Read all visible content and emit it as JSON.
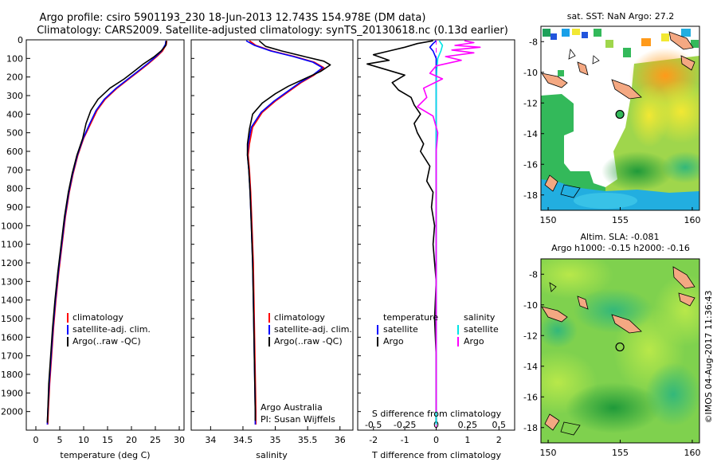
{
  "title": {
    "line1": "Argo profile: csiro 5901193_230 18-Jun-2013 12.743S 154.978E (DM data)",
    "line2": "Climatology: CARS2009. Satellite-adjusted climatology: synTS_20130618.nc (0.13d earlier)"
  },
  "colors": {
    "climatology": "#ff0000",
    "satellite": "#0000ff",
    "argo": "#000000",
    "cyan": "#00e5e5",
    "magenta": "#ff00ff"
  },
  "chart_data": [
    {
      "type": "line",
      "name": "temperature-profile",
      "xlabel": "temperature (deg C)",
      "ylabel": "",
      "xlim": [
        -2,
        31
      ],
      "ylim": [
        2100,
        0
      ],
      "xticks": [
        0,
        5,
        10,
        15,
        20,
        25,
        30
      ],
      "yticks": [
        0,
        100,
        200,
        300,
        400,
        500,
        600,
        700,
        800,
        900,
        1000,
        1100,
        1200,
        1300,
        1400,
        1500,
        1600,
        1700,
        1800,
        1900,
        2000
      ],
      "legend": [
        "climatology",
        "satellite-adj. clim.",
        "Argo(..raw -QC)"
      ],
      "series": [
        {
          "name": "climatology",
          "color": "#ff0000",
          "points": [
            [
              27.4,
              5
            ],
            [
              27.3,
              25
            ],
            [
              26.5,
              60
            ],
            [
              25.3,
              90
            ],
            [
              23.5,
              130
            ],
            [
              21.5,
              170
            ],
            [
              19.5,
              210
            ],
            [
              17,
              260
            ],
            [
              14.5,
              320
            ],
            [
              12.8,
              380
            ],
            [
              11.5,
              450
            ],
            [
              10,
              530
            ],
            [
              8.8,
              620
            ],
            [
              7.8,
              720
            ],
            [
              7,
              820
            ],
            [
              6.2,
              950
            ],
            [
              5.5,
              1100
            ],
            [
              4.8,
              1250
            ],
            [
              4.2,
              1400
            ],
            [
              3.7,
              1550
            ],
            [
              3.3,
              1700
            ],
            [
              2.9,
              1850
            ],
            [
              2.6,
              2000
            ],
            [
              2.5,
              2070
            ]
          ]
        },
        {
          "name": "satellite",
          "color": "#0000ff",
          "points": [
            [
              27.2,
              5
            ],
            [
              27.1,
              25
            ],
            [
              26.3,
              60
            ],
            [
              25.1,
              90
            ],
            [
              23.3,
              130
            ],
            [
              21.3,
              170
            ],
            [
              19.3,
              210
            ],
            [
              16.8,
              260
            ],
            [
              14.3,
              320
            ],
            [
              12.6,
              380
            ],
            [
              11.3,
              450
            ],
            [
              9.9,
              530
            ],
            [
              8.7,
              620
            ],
            [
              7.7,
              720
            ],
            [
              6.9,
              820
            ],
            [
              6.1,
              950
            ],
            [
              5.4,
              1100
            ],
            [
              4.7,
              1250
            ],
            [
              4.1,
              1400
            ],
            [
              3.6,
              1550
            ],
            [
              3.2,
              1700
            ],
            [
              2.8,
              1850
            ],
            [
              2.5,
              2000
            ],
            [
              2.4,
              2070
            ]
          ]
        },
        {
          "name": "argo",
          "color": "#000000",
          "points": [
            [
              27.3,
              5
            ],
            [
              27.2,
              30
            ],
            [
              26.2,
              60
            ],
            [
              24.8,
              90
            ],
            [
              22.5,
              130
            ],
            [
              20.5,
              170
            ],
            [
              18.5,
              210
            ],
            [
              15.5,
              260
            ],
            [
              13,
              320
            ],
            [
              11.5,
              380
            ],
            [
              10.5,
              450
            ],
            [
              9.8,
              530
            ],
            [
              8.6,
              620
            ],
            [
              7.6,
              720
            ],
            [
              6.8,
              820
            ],
            [
              6,
              950
            ],
            [
              5.3,
              1100
            ],
            [
              4.6,
              1250
            ],
            [
              4,
              1400
            ],
            [
              3.5,
              1550
            ],
            [
              3.1,
              1700
            ],
            [
              2.7,
              1850
            ],
            [
              2.5,
              2000
            ],
            [
              2.4,
              2060
            ]
          ]
        }
      ]
    },
    {
      "type": "line",
      "name": "salinity-profile",
      "xlabel": "salinity",
      "ylabel": "",
      "xlim": [
        33.7,
        36.2
      ],
      "ylim": [
        2100,
        0
      ],
      "xticks": [
        34,
        34.5,
        35,
        35.5,
        36
      ],
      "yticks": [],
      "legend": [
        "climatology",
        "satellite-adj. clim.",
        "Argo(..raw -QC)"
      ],
      "annotation": {
        "line1": "Argo Australia",
        "line2": "PI: Susan Wijffels"
      },
      "series": [
        {
          "name": "climatology",
          "color": "#ff0000",
          "points": [
            [
              34.6,
              5
            ],
            [
              34.7,
              30
            ],
            [
              34.95,
              60
            ],
            [
              35.3,
              90
            ],
            [
              35.6,
              120
            ],
            [
              35.75,
              150
            ],
            [
              35.6,
              190
            ],
            [
              35.4,
              230
            ],
            [
              35.2,
              280
            ],
            [
              35,
              330
            ],
            [
              34.8,
              390
            ],
            [
              34.65,
              470
            ],
            [
              34.6,
              560
            ],
            [
              34.58,
              620
            ],
            [
              34.6,
              700
            ],
            [
              34.62,
              820
            ],
            [
              34.64,
              1000
            ],
            [
              34.66,
              1200
            ],
            [
              34.67,
              1400
            ],
            [
              34.68,
              1600
            ],
            [
              34.69,
              1800
            ],
            [
              34.7,
              2000
            ],
            [
              34.7,
              2070
            ]
          ]
        },
        {
          "name": "satellite",
          "color": "#0000ff",
          "points": [
            [
              34.55,
              5
            ],
            [
              34.68,
              30
            ],
            [
              34.93,
              60
            ],
            [
              35.28,
              90
            ],
            [
              35.58,
              120
            ],
            [
              35.73,
              150
            ],
            [
              35.58,
              190
            ],
            [
              35.38,
              230
            ],
            [
              35.18,
              280
            ],
            [
              34.98,
              330
            ],
            [
              34.78,
              390
            ],
            [
              34.63,
              470
            ],
            [
              34.58,
              560
            ],
            [
              34.57,
              620
            ],
            [
              34.59,
              700
            ],
            [
              34.61,
              820
            ],
            [
              34.63,
              1000
            ],
            [
              34.65,
              1200
            ],
            [
              34.66,
              1400
            ],
            [
              34.67,
              1600
            ],
            [
              34.68,
              1800
            ],
            [
              34.69,
              2000
            ],
            [
              34.69,
              2070
            ]
          ]
        },
        {
          "name": "argo",
          "color": "#000000",
          "points": [
            [
              34.75,
              5
            ],
            [
              34.85,
              35
            ],
            [
              35.1,
              60
            ],
            [
              35.45,
              90
            ],
            [
              35.75,
              115
            ],
            [
              35.85,
              135
            ],
            [
              35.7,
              170
            ],
            [
              35.45,
              210
            ],
            [
              35.2,
              250
            ],
            [
              35,
              290
            ],
            [
              34.8,
              340
            ],
            [
              34.65,
              400
            ],
            [
              34.6,
              480
            ],
            [
              34.57,
              560
            ],
            [
              34.57,
              620
            ],
            [
              34.59,
              700
            ],
            [
              34.61,
              820
            ],
            [
              34.63,
              1000
            ],
            [
              34.65,
              1200
            ],
            [
              34.66,
              1400
            ],
            [
              34.67,
              1600
            ],
            [
              34.68,
              1800
            ],
            [
              34.69,
              2000
            ],
            [
              34.69,
              2050
            ]
          ]
        }
      ]
    },
    {
      "type": "line",
      "name": "difference-profile",
      "xlabel": "T difference from climatology",
      "xlabel_top": "S difference from climatology",
      "xlim": [
        -2.5,
        2.5
      ],
      "ylim": [
        2100,
        0
      ],
      "xticks_T": [
        -2,
        -1,
        0,
        1,
        2
      ],
      "xticks_S": [
        "-0.5",
        "-0.25",
        "0",
        "0.25",
        "0.5"
      ],
      "xticks_S_values": [
        -0.5,
        -0.25,
        0,
        0.25,
        0.5
      ],
      "legend_left": {
        "title": "temperature",
        "items": [
          "satellite",
          "Argo"
        ]
      },
      "legend_right": {
        "title": "salinity",
        "items": [
          "satellite",
          "Argo"
        ]
      },
      "series": [
        {
          "name": "T satellite",
          "color": "#0000ff",
          "points": [
            [
              0,
              5
            ],
            [
              -0.1,
              20
            ],
            [
              -0.2,
              40
            ],
            [
              -0.1,
              60
            ],
            [
              0,
              100
            ],
            [
              0,
              200
            ],
            [
              0,
              400
            ],
            [
              0,
              700
            ],
            [
              0,
              1000
            ],
            [
              0,
              1500
            ],
            [
              0,
              2070
            ]
          ]
        },
        {
          "name": "T argo",
          "color": "#000000",
          "points": [
            [
              -0.1,
              5
            ],
            [
              -0.6,
              20
            ],
            [
              -1,
              40
            ],
            [
              -1.5,
              60
            ],
            [
              -2,
              80
            ],
            [
              -1.5,
              110
            ],
            [
              -2.2,
              130
            ],
            [
              -1.6,
              160
            ],
            [
              -1,
              190
            ],
            [
              -1.4,
              230
            ],
            [
              -1.2,
              270
            ],
            [
              -0.8,
              310
            ],
            [
              -0.7,
              350
            ],
            [
              -0.5,
              400
            ],
            [
              -0.7,
              450
            ],
            [
              -0.6,
              500
            ],
            [
              -0.4,
              560
            ],
            [
              -0.5,
              600
            ],
            [
              -0.2,
              680
            ],
            [
              -0.3,
              760
            ],
            [
              -0.1,
              820
            ],
            [
              -0.15,
              900
            ],
            [
              -0.05,
              1000
            ],
            [
              -0.1,
              1100
            ],
            [
              0,
              1300
            ],
            [
              -0.05,
              1500
            ],
            [
              0,
              1700
            ],
            [
              0,
              1900
            ],
            [
              0,
              2060
            ]
          ]
        },
        {
          "name": "S satellite",
          "color": "#00e5e5",
          "points": [
            [
              0.1,
              5
            ],
            [
              0.2,
              30
            ],
            [
              0.15,
              60
            ],
            [
              0.05,
              100
            ],
            [
              0.02,
              160
            ],
            [
              0,
              250
            ],
            [
              0,
              400
            ],
            [
              0,
              700
            ],
            [
              0,
              1100
            ],
            [
              0,
              1500
            ],
            [
              0,
              2070
            ]
          ]
        },
        {
          "name": "S argo",
          "color": "#ff00ff",
          "points": [
            [
              0.9,
              5
            ],
            [
              1.2,
              15
            ],
            [
              0.6,
              30
            ],
            [
              1.4,
              40
            ],
            [
              0.5,
              55
            ],
            [
              1.2,
              70
            ],
            [
              0.3,
              90
            ],
            [
              0.8,
              110
            ],
            [
              0,
              140
            ],
            [
              -0.2,
              180
            ],
            [
              0.2,
              210
            ],
            [
              -0.4,
              260
            ],
            [
              -0.3,
              310
            ],
            [
              -0.6,
              360
            ],
            [
              -0.1,
              410
            ],
            [
              0.05,
              500
            ],
            [
              0,
              600
            ],
            [
              0,
              800
            ],
            [
              0,
              1000
            ],
            [
              0,
              1400
            ],
            [
              0,
              2000
            ]
          ]
        }
      ]
    },
    {
      "type": "heatmap",
      "name": "sst-map",
      "title": "sat. SST: NaN Argo: 27.2",
      "xlim": [
        149.5,
        160.5
      ],
      "ylim": [
        -19,
        -7
      ],
      "xticks": [
        150,
        155,
        160
      ],
      "yticks": [
        -8,
        -10,
        -12,
        -14,
        -16,
        -18
      ],
      "marker": {
        "lon": 154.978,
        "lat": -12.743
      }
    },
    {
      "type": "heatmap",
      "name": "sla-map",
      "title_line1": "Altim. SLA: -0.081",
      "title_line2": "Argo h1000: -0.15 h2000: -0.16",
      "xlim": [
        149.5,
        160.5
      ],
      "ylim": [
        -19,
        -7
      ],
      "xticks": [
        150,
        155,
        160
      ],
      "yticks": [
        -8,
        -10,
        -12,
        -14,
        -16,
        -18
      ],
      "marker": {
        "lon": 154.978,
        "lat": -12.743
      }
    }
  ],
  "side_label": "©IMOS 04-Aug-2017 11:36:43"
}
